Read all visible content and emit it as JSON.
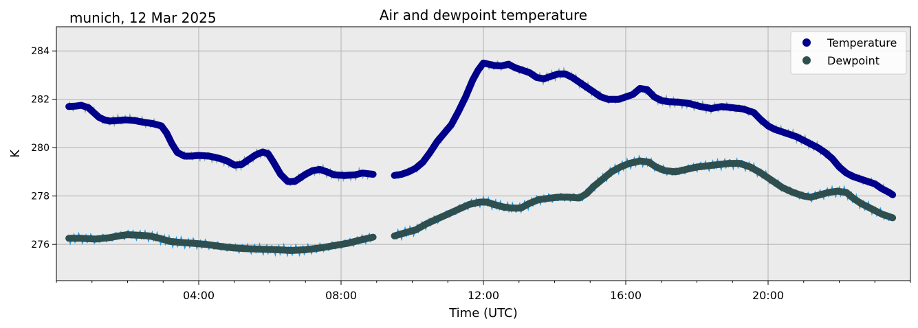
{
  "header": {
    "location_date": "munich, 12 Mar 2025"
  },
  "chart_data": {
    "type": "line",
    "title": "Air and dewpoint temperature",
    "xlabel": "Time (UTC)",
    "ylabel": "K",
    "xlim_hours": [
      0,
      24
    ],
    "ylim": [
      274.5,
      285
    ],
    "grid": true,
    "legend_position": "top-right",
    "background_color": "#ebebeb",
    "x_ticks": [
      {
        "hour": 4,
        "label": "04:00"
      },
      {
        "hour": 8,
        "label": "08:00"
      },
      {
        "hour": 12,
        "label": "12:00"
      },
      {
        "hour": 16,
        "label": "16:00"
      },
      {
        "hour": 20,
        "label": "20:00"
      }
    ],
    "y_ticks": [
      {
        "value": 276,
        "label": "276"
      },
      {
        "value": 278,
        "label": "278"
      },
      {
        "value": 280,
        "label": "280"
      },
      {
        "value": 282,
        "label": "282"
      },
      {
        "value": 284,
        "label": "284"
      }
    ],
    "series": [
      {
        "name": "Temperature",
        "marker_color": "#00008b",
        "raw_color": "#7aa8a8",
        "segments": [
          [
            [
              0.35,
              281.7
            ],
            [
              0.55,
              281.72
            ],
            [
              0.7,
              281.75
            ],
            [
              0.9,
              281.65
            ],
            [
              1.05,
              281.45
            ],
            [
              1.2,
              281.25
            ],
            [
              1.35,
              281.15
            ],
            [
              1.5,
              281.1
            ],
            [
              1.7,
              281.12
            ],
            [
              1.95,
              281.15
            ],
            [
              2.2,
              281.12
            ],
            [
              2.45,
              281.05
            ],
            [
              2.7,
              281.0
            ],
            [
              2.95,
              280.9
            ],
            [
              3.1,
              280.6
            ],
            [
              3.25,
              280.15
            ],
            [
              3.4,
              279.8
            ],
            [
              3.6,
              279.65
            ],
            [
              3.8,
              279.65
            ],
            [
              4.0,
              279.68
            ],
            [
              4.3,
              279.65
            ],
            [
              4.6,
              279.55
            ],
            [
              4.8,
              279.45
            ],
            [
              5.0,
              279.28
            ],
            [
              5.2,
              279.3
            ],
            [
              5.4,
              279.5
            ],
            [
              5.6,
              279.7
            ],
            [
              5.8,
              279.82
            ],
            [
              5.95,
              279.75
            ],
            [
              6.1,
              279.4
            ],
            [
              6.3,
              278.9
            ],
            [
              6.5,
              278.6
            ],
            [
              6.7,
              278.6
            ],
            [
              6.85,
              278.75
            ],
            [
              7.0,
              278.9
            ],
            [
              7.2,
              279.05
            ],
            [
              7.4,
              279.1
            ],
            [
              7.6,
              279.0
            ],
            [
              7.8,
              278.88
            ],
            [
              8.1,
              278.85
            ],
            [
              8.4,
              278.88
            ],
            [
              8.6,
              278.95
            ],
            [
              8.9,
              278.9
            ]
          ],
          [
            [
              9.5,
              278.85
            ],
            [
              9.7,
              278.9
            ],
            [
              9.9,
              279.0
            ],
            [
              10.1,
              279.15
            ],
            [
              10.3,
              279.4
            ],
            [
              10.5,
              279.8
            ],
            [
              10.7,
              280.25
            ],
            [
              10.9,
              280.6
            ],
            [
              11.1,
              280.95
            ],
            [
              11.3,
              281.5
            ],
            [
              11.5,
              282.1
            ],
            [
              11.7,
              282.8
            ],
            [
              11.85,
              283.2
            ],
            [
              12.0,
              283.5
            ],
            [
              12.15,
              283.45
            ],
            [
              12.3,
              283.4
            ],
            [
              12.5,
              283.38
            ],
            [
              12.7,
              283.45
            ],
            [
              12.9,
              283.3
            ],
            [
              13.1,
              283.2
            ],
            [
              13.3,
              283.1
            ],
            [
              13.5,
              282.9
            ],
            [
              13.7,
              282.85
            ],
            [
              13.9,
              282.95
            ],
            [
              14.1,
              283.05
            ],
            [
              14.3,
              283.05
            ],
            [
              14.5,
              282.9
            ],
            [
              14.7,
              282.7
            ],
            [
              14.9,
              282.5
            ],
            [
              15.1,
              282.3
            ],
            [
              15.3,
              282.1
            ],
            [
              15.5,
              282.0
            ],
            [
              15.8,
              282.0
            ],
            [
              16.0,
              282.1
            ],
            [
              16.2,
              282.2
            ],
            [
              16.4,
              282.45
            ],
            [
              16.6,
              282.4
            ],
            [
              16.8,
              282.1
            ],
            [
              17.0,
              281.95
            ],
            [
              17.2,
              281.9
            ],
            [
              17.5,
              281.88
            ],
            [
              17.8,
              281.82
            ],
            [
              18.1,
              281.7
            ],
            [
              18.4,
              281.62
            ],
            [
              18.7,
              281.7
            ],
            [
              19.0,
              281.65
            ],
            [
              19.3,
              281.6
            ],
            [
              19.6,
              281.45
            ],
            [
              19.8,
              281.15
            ],
            [
              20.0,
              280.9
            ],
            [
              20.2,
              280.75
            ],
            [
              20.4,
              280.65
            ],
            [
              20.6,
              280.55
            ],
            [
              20.8,
              280.45
            ],
            [
              21.0,
              280.3
            ],
            [
              21.2,
              280.15
            ],
            [
              21.4,
              280.0
            ],
            [
              21.6,
              279.8
            ],
            [
              21.8,
              279.55
            ],
            [
              22.0,
              279.2
            ],
            [
              22.2,
              278.95
            ],
            [
              22.4,
              278.8
            ],
            [
              22.6,
              278.7
            ],
            [
              22.8,
              278.6
            ],
            [
              23.0,
              278.5
            ],
            [
              23.2,
              278.3
            ],
            [
              23.4,
              278.15
            ],
            [
              23.5,
              278.05
            ]
          ]
        ]
      },
      {
        "name": "Dewpoint",
        "marker_color": "#2f4f4f",
        "raw_color": "#1e9bf0",
        "segments": [
          [
            [
              0.35,
              276.25
            ],
            [
              0.7,
              276.25
            ],
            [
              1.1,
              276.22
            ],
            [
              1.5,
              276.28
            ],
            [
              1.75,
              276.35
            ],
            [
              2.0,
              276.4
            ],
            [
              2.3,
              276.38
            ],
            [
              2.6,
              276.35
            ],
            [
              2.9,
              276.25
            ],
            [
              3.2,
              276.12
            ],
            [
              3.5,
              276.08
            ],
            [
              3.8,
              276.05
            ],
            [
              4.2,
              276.0
            ],
            [
              4.6,
              275.92
            ],
            [
              5.0,
              275.85
            ],
            [
              5.4,
              275.82
            ],
            [
              5.8,
              275.8
            ],
            [
              6.2,
              275.78
            ],
            [
              6.6,
              275.75
            ],
            [
              7.0,
              275.78
            ],
            [
              7.4,
              275.85
            ],
            [
              7.8,
              275.95
            ],
            [
              8.2,
              276.05
            ],
            [
              8.6,
              276.2
            ],
            [
              8.9,
              276.3
            ]
          ],
          [
            [
              9.5,
              276.35
            ],
            [
              9.8,
              276.48
            ],
            [
              10.1,
              276.6
            ],
            [
              10.4,
              276.85
            ],
            [
              10.7,
              277.05
            ],
            [
              11.0,
              277.25
            ],
            [
              11.3,
              277.45
            ],
            [
              11.6,
              277.65
            ],
            [
              11.9,
              277.75
            ],
            [
              12.1,
              277.75
            ],
            [
              12.3,
              277.65
            ],
            [
              12.55,
              277.55
            ],
            [
              12.8,
              277.5
            ],
            [
              13.05,
              277.5
            ],
            [
              13.3,
              277.7
            ],
            [
              13.55,
              277.85
            ],
            [
              13.8,
              277.9
            ],
            [
              14.1,
              277.95
            ],
            [
              14.4,
              277.95
            ],
            [
              14.7,
              277.92
            ],
            [
              14.9,
              278.1
            ],
            [
              15.1,
              278.4
            ],
            [
              15.35,
              278.7
            ],
            [
              15.6,
              279.0
            ],
            [
              15.85,
              279.2
            ],
            [
              16.1,
              279.35
            ],
            [
              16.4,
              279.45
            ],
            [
              16.65,
              279.4
            ],
            [
              16.85,
              279.2
            ],
            [
              17.1,
              279.05
            ],
            [
              17.4,
              279.0
            ],
            [
              17.7,
              279.1
            ],
            [
              18.0,
              279.2
            ],
            [
              18.3,
              279.25
            ],
            [
              18.6,
              279.3
            ],
            [
              18.9,
              279.35
            ],
            [
              19.2,
              279.35
            ],
            [
              19.5,
              279.2
            ],
            [
              19.8,
              278.95
            ],
            [
              20.1,
              278.65
            ],
            [
              20.4,
              278.35
            ],
            [
              20.7,
              278.15
            ],
            [
              21.0,
              278.0
            ],
            [
              21.2,
              277.95
            ],
            [
              21.45,
              278.05
            ],
            [
              21.7,
              278.15
            ],
            [
              21.95,
              278.2
            ],
            [
              22.2,
              278.15
            ],
            [
              22.4,
              277.9
            ],
            [
              22.6,
              277.7
            ],
            [
              22.8,
              277.55
            ],
            [
              23.0,
              277.4
            ],
            [
              23.2,
              277.25
            ],
            [
              23.4,
              277.15
            ],
            [
              23.5,
              277.1
            ]
          ]
        ]
      }
    ]
  }
}
